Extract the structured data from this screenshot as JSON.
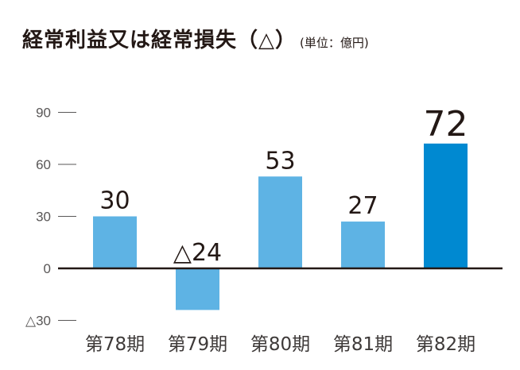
{
  "chart_data": {
    "type": "bar",
    "title": "経常利益又は経常損失（△）",
    "unit": "(単位：億円)",
    "categories": [
      "第78期",
      "第79期",
      "第80期",
      "第81期",
      "第82期"
    ],
    "values": [
      30,
      -24,
      53,
      27,
      72
    ],
    "data_labels": [
      "30",
      "△24",
      "53",
      "27",
      "72"
    ],
    "ylim": [
      -30,
      90
    ],
    "yticks": [
      90,
      60,
      30,
      0,
      -30
    ],
    "ytick_labels": [
      "90",
      "60",
      "30",
      "0",
      "△30"
    ],
    "xlabel": "",
    "ylabel": "",
    "colors": {
      "bar": "#5EB3E4",
      "highlight": "#0089D1",
      "axis": "#231815",
      "tick": "#595757"
    },
    "highlight_index": 4
  }
}
